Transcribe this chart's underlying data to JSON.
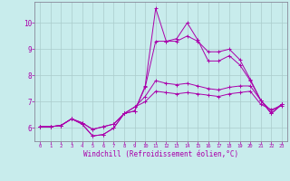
{
  "background_color": "#c8ecec",
  "line_color": "#aa00aa",
  "grid_color": "#aacccc",
  "xlabel": "Windchill (Refroidissement éolien,°C)",
  "xlim": [
    -0.5,
    23.5
  ],
  "ylim": [
    5.5,
    10.8
  ],
  "xticks": [
    0,
    1,
    2,
    3,
    4,
    5,
    6,
    7,
    8,
    9,
    10,
    11,
    12,
    13,
    14,
    15,
    16,
    17,
    18,
    19,
    20,
    21,
    22,
    23
  ],
  "yticks": [
    6,
    7,
    8,
    9,
    10
  ],
  "series": [
    [
      6.05,
      6.05,
      6.1,
      6.35,
      6.15,
      5.7,
      5.75,
      6.0,
      6.55,
      6.65,
      7.6,
      10.55,
      9.3,
      9.4,
      10.0,
      9.35,
      8.55,
      8.55,
      8.75,
      8.4,
      7.8,
      7.05,
      6.55,
      6.9
    ],
    [
      6.05,
      6.05,
      6.1,
      6.35,
      6.15,
      5.7,
      5.75,
      6.0,
      6.55,
      6.65,
      7.55,
      9.3,
      9.3,
      9.3,
      9.5,
      9.3,
      8.9,
      8.9,
      9.0,
      8.6,
      7.85,
      7.05,
      6.55,
      6.9
    ],
    [
      6.05,
      6.05,
      6.1,
      6.35,
      6.2,
      5.95,
      6.05,
      6.15,
      6.55,
      6.8,
      7.2,
      7.8,
      7.7,
      7.65,
      7.7,
      7.6,
      7.5,
      7.45,
      7.55,
      7.6,
      7.6,
      7.05,
      6.65,
      6.9
    ],
    [
      6.05,
      6.05,
      6.1,
      6.35,
      6.2,
      5.95,
      6.05,
      6.15,
      6.55,
      6.8,
      7.0,
      7.4,
      7.35,
      7.3,
      7.35,
      7.3,
      7.25,
      7.2,
      7.3,
      7.35,
      7.4,
      6.9,
      6.7,
      6.85
    ]
  ]
}
